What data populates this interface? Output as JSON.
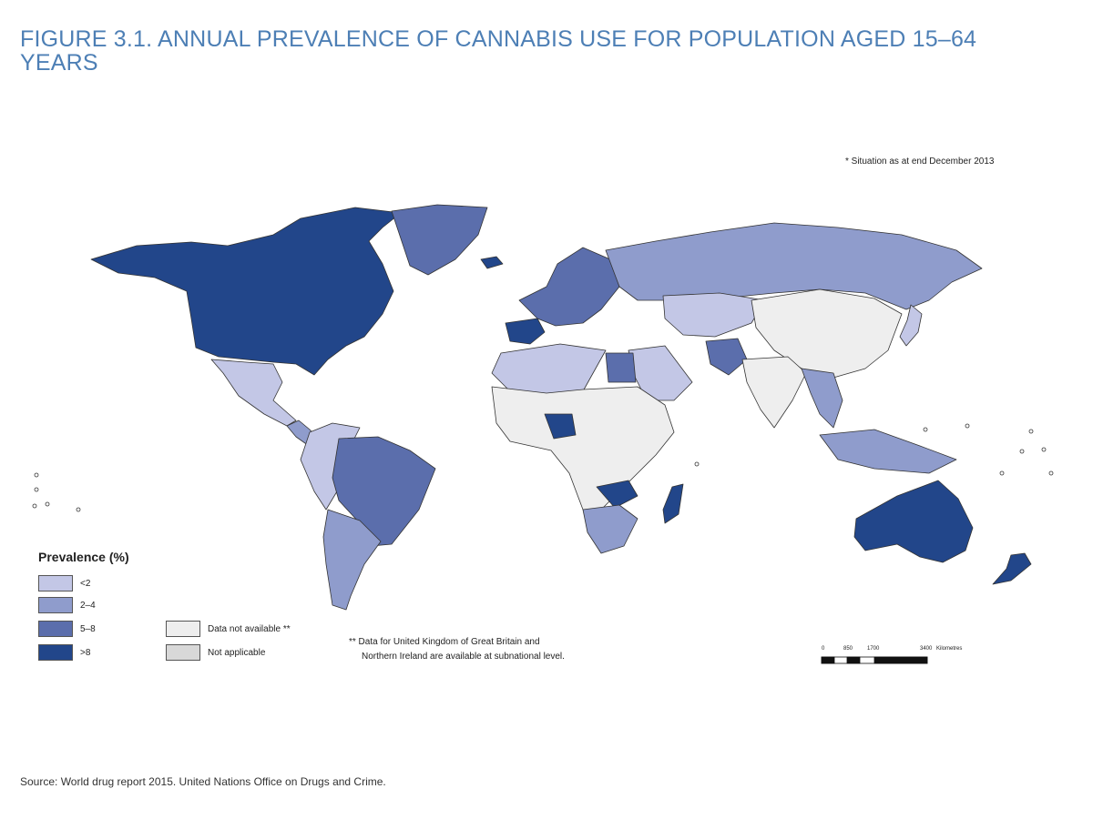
{
  "title": "FIGURE 3.1. ANNUAL PREVALENCE OF CANNABIS USE FOR POPULATION AGED 15–64 YEARS",
  "footnote_top": "* Situation as at end December 2013",
  "colors": {
    "title": "#4d7fb5",
    "lt2": "#c3c7e6",
    "c2_4": "#8f9ccc",
    "c5_8": "#5b6eac",
    "gt8": "#22468a",
    "not_available": "#eeeeee",
    "not_applicable": "#d8d8d8",
    "border": "#333333"
  },
  "legend": {
    "title": "Prevalence (%)",
    "classes": [
      {
        "label": "<2",
        "color": "#c3c7e6"
      },
      {
        "label": "2–4",
        "color": "#8f9ccc"
      },
      {
        "label": "5–8",
        "color": "#5b6eac"
      },
      {
        "label": ">8",
        "color": "#22468a"
      }
    ],
    "other": [
      {
        "label": "Data not available **",
        "color": "#eeeeee"
      },
      {
        "label": "Not applicable",
        "color": "#d8d8d8"
      }
    ]
  },
  "note_uk": {
    "line1": "** Data for United Kingdom of Great Britain and",
    "line2": "Northern Ireland are available at subnational level."
  },
  "scale_bar": {
    "ticks": [
      "0",
      "850",
      "1700",
      "3400"
    ],
    "unit": "Kilometres"
  },
  "source": "Source: World drug report 2015. United Nations Office on Drugs and Crime.",
  "regions": [
    {
      "name": "Canada and United States",
      "class": ">8"
    },
    {
      "name": "Greenland",
      "class": "5–8"
    },
    {
      "name": "Iceland",
      "class": ">8"
    },
    {
      "name": "Mexico",
      "class": "<2"
    },
    {
      "name": "Central America",
      "class": "2–4"
    },
    {
      "name": "Brazil",
      "class": "5–8"
    },
    {
      "name": "Southern cone",
      "class": "2–4"
    },
    {
      "name": "Andean countries",
      "class": "<2"
    },
    {
      "name": "Spain",
      "class": ">8"
    },
    {
      "name": "Western Europe",
      "class": "5–8"
    },
    {
      "name": "Russian Federation",
      "class": "2–4"
    },
    {
      "name": "Central Asia",
      "class": "<2"
    },
    {
      "name": "China and Mongolia",
      "class": "Data not available **"
    },
    {
      "name": "North Africa",
      "class": "<2"
    },
    {
      "name": "Sahara and Sahel",
      "class": "Data not available **"
    },
    {
      "name": "Egypt",
      "class": "5–8"
    },
    {
      "name": "Nigeria",
      "class": ">8"
    },
    {
      "name": "Zambia",
      "class": ">8"
    },
    {
      "name": "Southern Africa",
      "class": "2–4"
    },
    {
      "name": "Madagascar",
      "class": ">8"
    },
    {
      "name": "Arabian Peninsula",
      "class": "<2"
    },
    {
      "name": "Afghanistan and Pakistan",
      "class": "5–8"
    },
    {
      "name": "India",
      "class": "Data not available **"
    },
    {
      "name": "South-East Asia",
      "class": "2–4"
    },
    {
      "name": "Indonesia",
      "class": "2–4"
    },
    {
      "name": "Japan",
      "class": "<2"
    },
    {
      "name": "Australia",
      "class": ">8"
    },
    {
      "name": "New Zealand",
      "class": ">8"
    }
  ]
}
